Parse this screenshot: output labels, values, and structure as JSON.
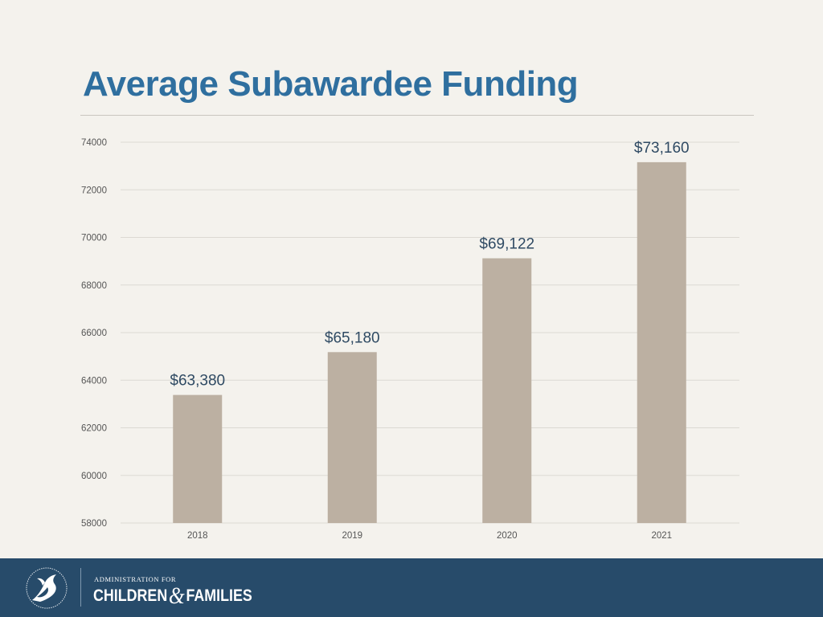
{
  "slide": {
    "title": "Average Subawardee Funding"
  },
  "footer": {
    "admin_line": "ADMINISTRATION FOR",
    "org_part1": "CHILDREN",
    "org_amp": "&",
    "org_part2": "FAMILIES",
    "seal_icon": "hhs-eagle-seal-icon"
  },
  "colors": {
    "title": "#2f6f9f",
    "bar": "#bcb0a2",
    "footer_bg": "#274b6a",
    "grid": "#dcd9d3"
  },
  "chart_data": {
    "type": "bar",
    "categories": [
      "2018",
      "2019",
      "2020",
      "2021"
    ],
    "values": [
      63380,
      65180,
      69122,
      73160
    ],
    "data_labels": [
      "$63,380",
      "$65,180",
      "$69,122",
      "$73,160"
    ],
    "yticks": [
      "58000",
      "60000",
      "62000",
      "64000",
      "66000",
      "68000",
      "70000",
      "72000",
      "74000"
    ],
    "ylim": [
      58000,
      74000
    ],
    "grid": true,
    "legend": "none"
  }
}
